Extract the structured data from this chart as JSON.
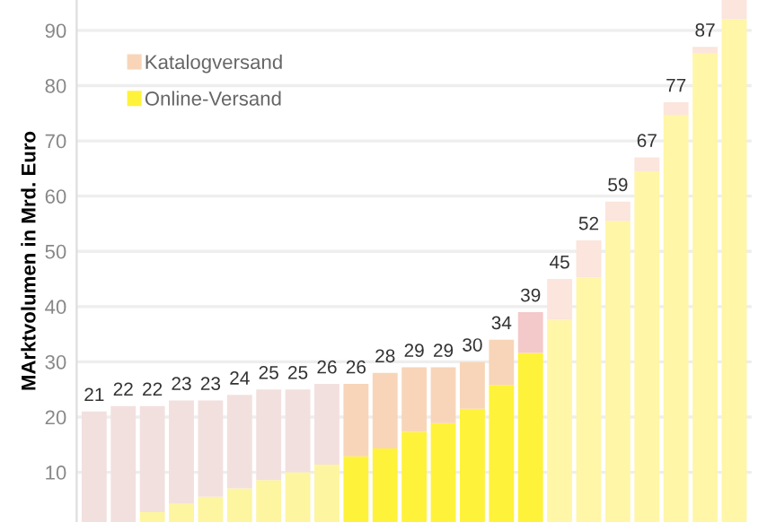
{
  "chart_data": {
    "type": "bar",
    "stacked": true,
    "ylabel": "MArktvolumen in Mrd. Euro",
    "categories": [
      null,
      null,
      null,
      null,
      null,
      null,
      null,
      null,
      null,
      null,
      null,
      null,
      null,
      null,
      null,
      null,
      null,
      null,
      null,
      null,
      null,
      null,
      null
    ],
    "series": [
      {
        "name": "Online-Versand",
        "color": "#fff23a",
        "colors": [
          "#fdf5a0",
          "#fdf5a0",
          "#fdf5a0",
          "#fdf5a0",
          "#fdf5a0",
          "#fdf5a0",
          "#fdf5a0",
          "#fdf5a0",
          "#fdf5a0",
          "#fff23a",
          "#fff23a",
          "#fff23a",
          "#fff23a",
          "#fff23a",
          "#fff23a",
          "#fff23a",
          "#fff6a8",
          "#fff6a8",
          "#fff6a8",
          "#fff6a8",
          "#fff6a8",
          "#fff6a8",
          "#fff6a8"
        ],
        "values": [
          null,
          null,
          2.8,
          4.3,
          5.6,
          7.1,
          8.6,
          10,
          11.4,
          12.9,
          14.3,
          17.3,
          18.9,
          21.5,
          25.8,
          31.6,
          37.6,
          45.3,
          55.5,
          64.5,
          74.7,
          85.8,
          92
        ]
      },
      {
        "name": "Katalogversand",
        "color": "#f8d5b8",
        "colors": [
          "#f2e0df",
          "#f2e0df",
          "#f2e0df",
          "#f2e0df",
          "#f2e0df",
          "#f2e0df",
          "#f2e0df",
          "#f2e0df",
          "#f2e0df",
          "#f8d5b8",
          "#f8d5b8",
          "#f8d5b8",
          "#f8d5b8",
          "#f8d5b8",
          "#f8d5b8",
          "#f4c9c9",
          "#fbe5dc",
          "#fbe5dc",
          "#fbe5dc",
          "#fbe5dc",
          "#fbe5dc",
          "#fbe5dc",
          "#fbe5dc"
        ],
        "values": [
          21,
          22,
          19.2,
          18.7,
          17.4,
          16.9,
          16.4,
          15,
          14.6,
          13.1,
          13.7,
          11.7,
          10.1,
          8.5,
          8.2,
          7.4,
          7.4,
          6.7,
          3.5,
          2.5,
          2.3,
          1.2,
          3.5
        ]
      }
    ],
    "totals": [
      "21",
      "22",
      "22",
      "23",
      "23",
      "24",
      "25",
      "25",
      "26",
      "26",
      "28",
      "29",
      "29",
      "30",
      "34",
      "39",
      "45",
      "52",
      "59",
      "67",
      "77",
      "87",
      null
    ],
    "ylim": [
      1,
      95.5
    ],
    "yticks": [
      10,
      20,
      30,
      40,
      50,
      60,
      70,
      80,
      90
    ],
    "grid": "y",
    "legend": "top left",
    "tick_labels": "y"
  }
}
